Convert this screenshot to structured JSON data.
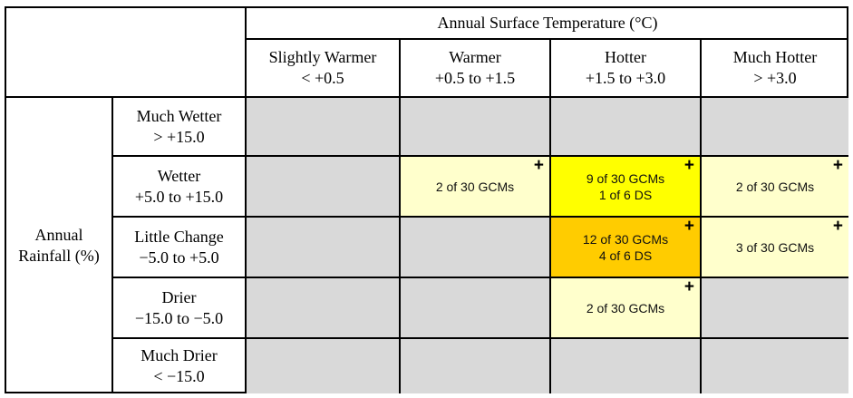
{
  "header": {
    "temperature_title": "Annual Surface Temperature (°C)",
    "columns": [
      {
        "name": "Slightly Warmer",
        "range": "< +0.5"
      },
      {
        "name": "Warmer",
        "range": "+0.5 to +1.5"
      },
      {
        "name": "Hotter",
        "range": "+1.5 to +3.0"
      },
      {
        "name": "Much Hotter",
        "range": "> +3.0"
      }
    ]
  },
  "rainfall": {
    "title_line1": "Annual",
    "title_line2": "Rainfall (%)",
    "rows": [
      {
        "name": "Much Wetter",
        "range": "> +15.0"
      },
      {
        "name": "Wetter",
        "range": "+5.0 to +15.0"
      },
      {
        "name": "Little Change",
        "range": "−5.0 to +5.0"
      },
      {
        "name": "Drier",
        "range": "−15.0 to −5.0"
      },
      {
        "name": "Much Drier",
        "range": "< −15.0"
      }
    ]
  },
  "cells": [
    [
      {
        "lines": [],
        "plus": "",
        "color": "#d9d9d9"
      },
      {
        "lines": [],
        "plus": "",
        "color": "#d9d9d9"
      },
      {
        "lines": [],
        "plus": "",
        "color": "#d9d9d9"
      },
      {
        "lines": [],
        "plus": "",
        "color": "#d9d9d9"
      }
    ],
    [
      {
        "lines": [],
        "plus": "",
        "color": "#d9d9d9"
      },
      {
        "lines": [
          "2 of 30 GCMs"
        ],
        "plus": "+",
        "color": "#ffffcc"
      },
      {
        "lines": [
          "9 of 30 GCMs",
          "1 of 6 DS"
        ],
        "plus": "+",
        "color": "#ffff00"
      },
      {
        "lines": [
          "2 of 30 GCMs"
        ],
        "plus": "+",
        "color": "#ffffcc"
      }
    ],
    [
      {
        "lines": [],
        "plus": "",
        "color": "#d9d9d9"
      },
      {
        "lines": [],
        "plus": "",
        "color": "#d9d9d9"
      },
      {
        "lines": [
          "12 of 30 GCMs",
          "4 of 6 DS"
        ],
        "plus": "+",
        "color": "#ffcc00"
      },
      {
        "lines": [
          "3 of 30 GCMs"
        ],
        "plus": "+",
        "color": "#ffffcc"
      }
    ],
    [
      {
        "lines": [],
        "plus": "",
        "color": "#d9d9d9"
      },
      {
        "lines": [],
        "plus": "",
        "color": "#d9d9d9"
      },
      {
        "lines": [
          "2 of 30 GCMs"
        ],
        "plus": "+",
        "color": "#ffffcc"
      },
      {
        "lines": [],
        "plus": "",
        "color": "#d9d9d9"
      }
    ],
    [
      {
        "lines": [],
        "plus": "",
        "color": "#d9d9d9"
      },
      {
        "lines": [],
        "plus": "",
        "color": "#d9d9d9"
      },
      {
        "lines": [],
        "plus": "",
        "color": "#d9d9d9"
      },
      {
        "lines": [],
        "plus": "",
        "color": "#d9d9d9"
      }
    ]
  ]
}
